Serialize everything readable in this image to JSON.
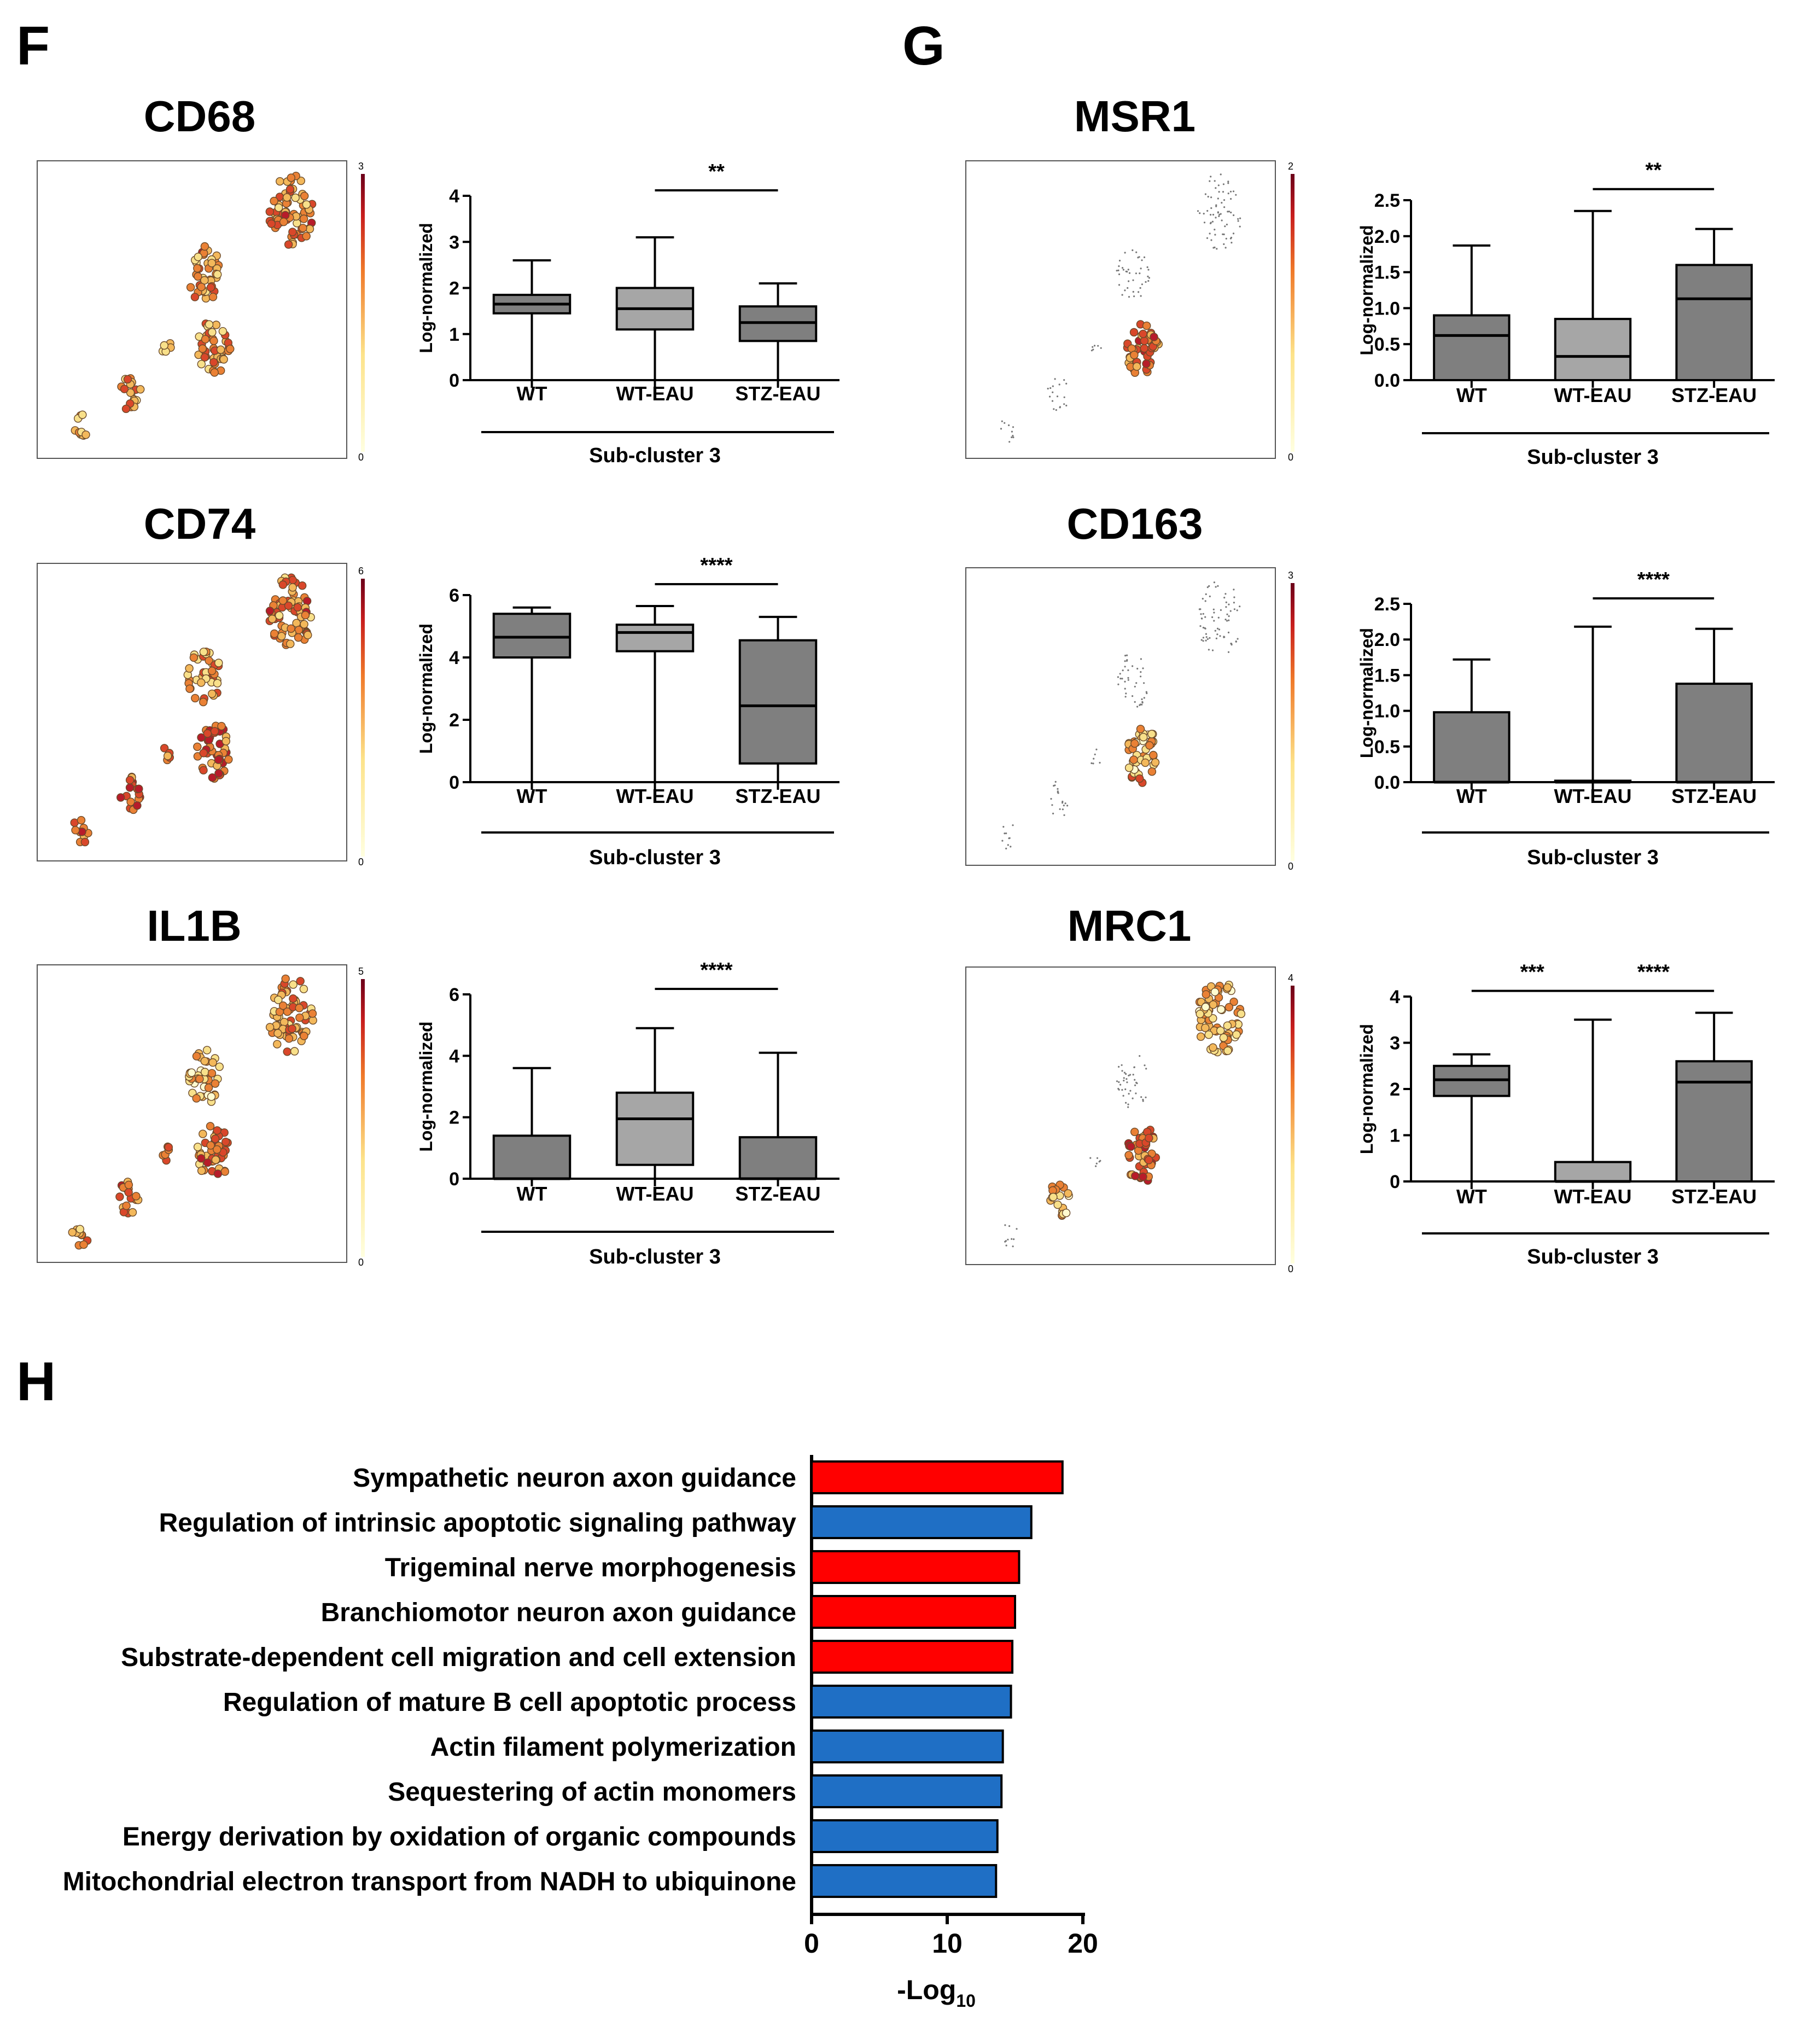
{
  "panel_labels": {
    "F": "F",
    "G": "G",
    "H": "H"
  },
  "common": {
    "ylabel": "Log-normalized",
    "xlabel": "Sub-cluster 3",
    "groups": [
      "WT",
      "WT-EAU",
      "STZ-EAU"
    ]
  },
  "chart_data": [
    {
      "type": "box",
      "panel": "F",
      "gene": "CD68",
      "umap_scale_max": "3",
      "ylim": [
        0,
        4
      ],
      "yticks": [
        "0",
        "1",
        "2",
        "3",
        "4"
      ],
      "boxes": [
        {
          "group": "WT",
          "min": 0,
          "q1": 1.45,
          "median": 1.65,
          "q3": 1.85,
          "max": 2.6
        },
        {
          "group": "WT-EAU",
          "min": 0,
          "q1": 1.1,
          "median": 1.55,
          "q3": 2.0,
          "max": 3.1
        },
        {
          "group": "STZ-EAU",
          "min": 0,
          "q1": 0.85,
          "median": 1.25,
          "q3": 1.6,
          "max": 2.1
        }
      ],
      "significance": [
        {
          "from": "WT-EAU",
          "to": "STZ-EAU",
          "label": "**"
        }
      ]
    },
    {
      "type": "box",
      "panel": "F",
      "gene": "CD74",
      "umap_scale_max": "6",
      "ylim": [
        0,
        6
      ],
      "yticks": [
        "0",
        "2",
        "4",
        "6"
      ],
      "boxes": [
        {
          "group": "WT",
          "min": 0,
          "q1": 4.0,
          "median": 4.65,
          "q3": 5.4,
          "max": 5.6
        },
        {
          "group": "WT-EAU",
          "min": 0,
          "q1": 4.2,
          "median": 4.8,
          "q3": 5.05,
          "max": 5.65
        },
        {
          "group": "STZ-EAU",
          "min": 0,
          "q1": 0.6,
          "median": 2.45,
          "q3": 4.55,
          "max": 5.3
        }
      ],
      "significance": [
        {
          "from": "WT-EAU",
          "to": "STZ-EAU",
          "label": "****"
        }
      ]
    },
    {
      "type": "box",
      "panel": "F",
      "gene": "IL1B",
      "umap_scale_max": "5",
      "ylim": [
        0,
        6
      ],
      "yticks": [
        "0",
        "2",
        "4",
        "6"
      ],
      "boxes": [
        {
          "group": "WT",
          "min": 0,
          "q1": 0,
          "median": 0,
          "q3": 1.4,
          "max": 3.6
        },
        {
          "group": "WT-EAU",
          "min": 0,
          "q1": 0.45,
          "median": 1.95,
          "q3": 2.8,
          "max": 4.9
        },
        {
          "group": "STZ-EAU",
          "min": 0,
          "q1": 0,
          "median": 0,
          "q3": 1.35,
          "max": 4.1
        }
      ],
      "significance": [
        {
          "from": "WT-EAU",
          "to": "STZ-EAU",
          "label": "****"
        }
      ]
    },
    {
      "type": "box",
      "panel": "G",
      "gene": "MSR1",
      "umap_scale_max": "2",
      "ylim": [
        0,
        2.5
      ],
      "yticks": [
        "0.0",
        "0.5",
        "1.0",
        "1.5",
        "2.0",
        "2.5"
      ],
      "boxes": [
        {
          "group": "WT",
          "min": 0,
          "q1": 0,
          "median": 0.62,
          "q3": 0.9,
          "max": 1.87
        },
        {
          "group": "WT-EAU",
          "min": 0,
          "q1": 0,
          "median": 0.33,
          "q3": 0.85,
          "max": 2.35
        },
        {
          "group": "STZ-EAU",
          "min": 0,
          "q1": 0,
          "median": 1.13,
          "q3": 1.6,
          "max": 2.1
        }
      ],
      "significance": [
        {
          "from": "WT-EAU",
          "to": "STZ-EAU",
          "label": "**"
        }
      ]
    },
    {
      "type": "box",
      "panel": "G",
      "gene": "CD163",
      "umap_scale_max": "3",
      "ylim": [
        0,
        2.5
      ],
      "yticks": [
        "0.0",
        "0.5",
        "1.0",
        "1.5",
        "2.0",
        "2.5"
      ],
      "boxes": [
        {
          "group": "WT",
          "min": 0,
          "q1": 0,
          "median": 0,
          "q3": 0.98,
          "max": 1.72
        },
        {
          "group": "WT-EAU",
          "min": 0,
          "q1": 0,
          "median": 0,
          "q3": 0.02,
          "max": 2.18
        },
        {
          "group": "STZ-EAU",
          "min": 0,
          "q1": 0,
          "median": 0,
          "q3": 1.38,
          "max": 2.15
        }
      ],
      "significance": [
        {
          "from": "WT-EAU",
          "to": "STZ-EAU",
          "label": "****"
        }
      ]
    },
    {
      "type": "box",
      "panel": "G",
      "gene": "MRC1",
      "umap_scale_max": "4",
      "ylim": [
        0,
        4
      ],
      "yticks": [
        "0",
        "1",
        "2",
        "3",
        "4"
      ],
      "boxes": [
        {
          "group": "WT",
          "min": 0,
          "q1": 1.85,
          "median": 2.2,
          "q3": 2.5,
          "max": 2.75
        },
        {
          "group": "WT-EAU",
          "min": 0,
          "q1": 0,
          "median": 0,
          "q3": 0.42,
          "max": 3.5
        },
        {
          "group": "STZ-EAU",
          "min": 0,
          "q1": 0,
          "median": 2.15,
          "q3": 2.6,
          "max": 3.65
        }
      ],
      "significance": [
        {
          "from": "WT",
          "to": "WT-EAU",
          "label": "***"
        },
        {
          "from": "WT-EAU",
          "to": "STZ-EAU",
          "label": "****"
        }
      ]
    },
    {
      "type": "bar",
      "panel": "H",
      "orientation": "horizontal",
      "xlabel": "-Log",
      "xlabel_sub": "10",
      "xlim": [
        0,
        20
      ],
      "xticks": [
        "0",
        "10",
        "20"
      ],
      "categories": [
        "Sympathetic neuron axon guidance",
        "Regulation of intrinsic apoptotic signaling pathway",
        "Trigeminal nerve morphogenesis",
        "Branchiomotor neuron axon guidance",
        "Substrate-dependent cell migration and cell extension",
        "Regulation of mature B cell apoptotic process",
        "Actin filament polymerization",
        "Sequestering of actin monomers",
        "Energy derivation by oxidation of organic compounds",
        "Mitochondrial electron transport from NADH to ubiquinone"
      ],
      "values": [
        18.5,
        16.2,
        15.3,
        15.0,
        14.8,
        14.7,
        14.1,
        14.0,
        13.7,
        13.6
      ],
      "colors": [
        "#ff0000",
        "#1f6fc5",
        "#ff0000",
        "#ff0000",
        "#ff0000",
        "#1f6fc5",
        "#1f6fc5",
        "#1f6fc5",
        "#1f6fc5",
        "#1f6fc5"
      ]
    }
  ],
  "colors": {
    "box_dark": "#7f7f7f",
    "box_light": "#a6a6a6",
    "red": "#ff0000",
    "blue": "#1f6fc5"
  }
}
